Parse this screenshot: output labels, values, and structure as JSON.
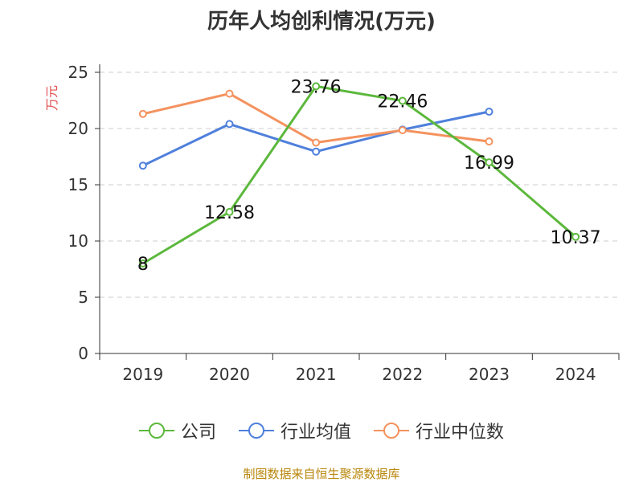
{
  "chart_data": {
    "type": "line",
    "title": "历年人均创利情况(万元)",
    "ylabel": "万元",
    "x": [
      "2019",
      "2020",
      "2021",
      "2022",
      "2023",
      "2024"
    ],
    "ylim": [
      0,
      25
    ],
    "yticks": [
      0,
      5,
      10,
      15,
      20,
      25
    ],
    "grid": true,
    "legend_position": "bottom",
    "series": [
      {
        "name": "公司",
        "color": "#5cb83c",
        "values": [
          8,
          12.58,
          23.76,
          22.46,
          16.99,
          10.37
        ],
        "labels": [
          "8",
          "12.58",
          "23.76",
          "22.46",
          "16.99",
          "10.37"
        ]
      },
      {
        "name": "行业均值",
        "color": "#4f80dc",
        "values": [
          16.7,
          20.4,
          17.95,
          19.9,
          21.5,
          null
        ]
      },
      {
        "name": "行业中位数",
        "color": "#f4925e",
        "values": [
          21.3,
          23.1,
          18.75,
          19.85,
          18.85,
          null
        ]
      }
    ]
  },
  "source_text": "制图数据来自恒生聚源数据库"
}
